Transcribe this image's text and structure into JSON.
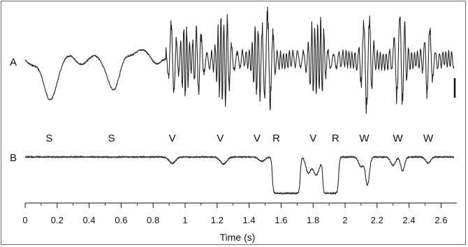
{
  "chart_data": {
    "type": "line",
    "traces": [
      {
        "name": "A"
      },
      {
        "name": "B"
      }
    ],
    "xlabel": "Time (s)",
    "xlim": [
      0,
      2.68
    ],
    "ticks": [
      "0",
      "0.2",
      "0.4",
      "0.6",
      "0.8",
      "1",
      "1.2",
      "1.4",
      "1.6",
      "1.8",
      "2",
      "2.2",
      "2.4",
      "2.6"
    ],
    "tick_values": [
      0,
      0.2,
      0.4,
      0.6,
      0.8,
      1.0,
      1.2,
      1.4,
      1.6,
      1.8,
      2.0,
      2.2,
      2.4,
      2.6
    ],
    "events": [
      {
        "label": "S",
        "t": 0.15
      },
      {
        "label": "S",
        "t": 0.54
      },
      {
        "label": "V",
        "t": 0.92
      },
      {
        "label": "V",
        "t": 1.22
      },
      {
        "label": "V",
        "t": 1.45
      },
      {
        "label": "R",
        "t": 1.57
      },
      {
        "label": "V",
        "t": 1.8
      },
      {
        "label": "R",
        "t": 1.94
      },
      {
        "label": "W",
        "t": 2.12
      },
      {
        "label": "W",
        "t": 2.33
      },
      {
        "label": "W",
        "t": 2.52
      }
    ],
    "grid": false,
    "colors": {
      "trace": "#222222",
      "frame": "#6a6a6a"
    }
  }
}
